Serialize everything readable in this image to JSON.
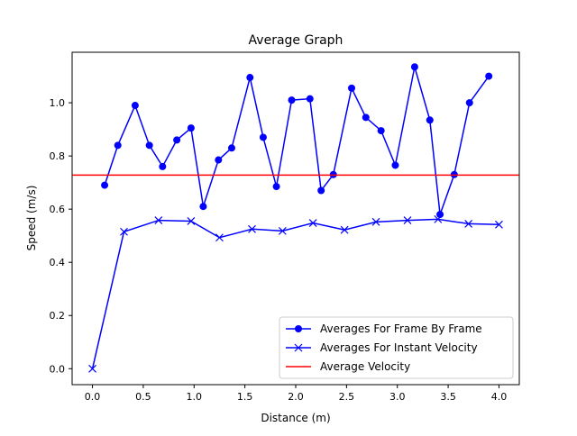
{
  "chart_data": {
    "type": "line",
    "title": "Average Graph",
    "xlabel": "Distance (m)",
    "ylabel": "Speed (m/s)",
    "xlim": [
      -0.2,
      4.2
    ],
    "ylim": [
      -0.06,
      1.19
    ],
    "x_ticks": [
      0.0,
      0.5,
      1.0,
      1.5,
      2.0,
      2.5,
      3.0,
      3.5,
      4.0
    ],
    "x_tick_labels": [
      "0.0",
      "0.5",
      "1.0",
      "1.5",
      "2.0",
      "2.5",
      "3.0",
      "3.5",
      "4.0"
    ],
    "y_ticks": [
      0.0,
      0.2,
      0.4,
      0.6,
      0.8,
      1.0
    ],
    "y_tick_labels": [
      "0.0",
      "0.2",
      "0.4",
      "0.6",
      "0.8",
      "1.0"
    ],
    "grid": false,
    "legend_position": "lower-right",
    "series": [
      {
        "name": "Averages For Frame By Frame",
        "color": "#0000ff",
        "marker": "circle",
        "x": [
          0.12,
          0.25,
          0.42,
          0.56,
          0.69,
          0.83,
          0.97,
          1.09,
          1.24,
          1.37,
          1.55,
          1.68,
          1.81,
          1.96,
          2.14,
          2.25,
          2.37,
          2.55,
          2.69,
          2.84,
          2.98,
          3.17,
          3.32,
          3.42,
          3.56,
          3.71,
          3.9
        ],
        "y": [
          0.69,
          0.84,
          0.99,
          0.84,
          0.76,
          0.86,
          0.905,
          0.61,
          0.785,
          0.83,
          1.095,
          0.87,
          0.685,
          1.01,
          1.015,
          0.67,
          0.73,
          1.055,
          0.945,
          0.895,
          0.765,
          1.135,
          0.935,
          0.58,
          0.73,
          1.0,
          1.1
        ]
      },
      {
        "name": "Averages For Instant Velocity",
        "color": "#0000ff",
        "marker": "x",
        "x": [
          0.0,
          0.31,
          0.65,
          0.97,
          1.25,
          1.57,
          1.87,
          2.17,
          2.48,
          2.79,
          3.1,
          3.4,
          3.7,
          4.0
        ],
        "y": [
          0.0,
          0.515,
          0.558,
          0.555,
          0.493,
          0.525,
          0.518,
          0.548,
          0.522,
          0.552,
          0.558,
          0.562,
          0.545,
          0.542
        ]
      },
      {
        "name": "Average Velocity",
        "color": "#ff0000",
        "marker": "none",
        "hline": 0.728
      }
    ]
  }
}
